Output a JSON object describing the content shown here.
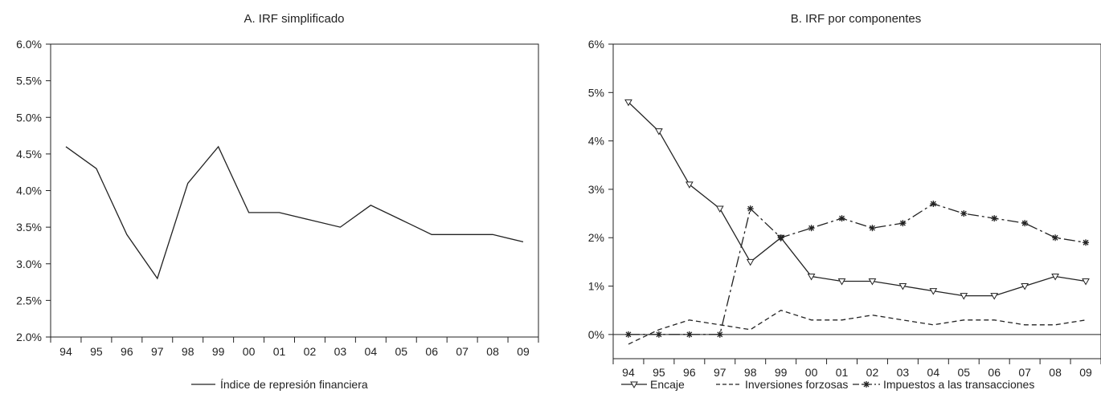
{
  "chart_data": [
    {
      "type": "line",
      "title": "A. IRF simplificado",
      "categories": [
        "94",
        "95",
        "96",
        "97",
        "98",
        "99",
        "00",
        "01",
        "02",
        "03",
        "04",
        "05",
        "06",
        "07",
        "08",
        "09"
      ],
      "ylim": [
        0.02,
        0.06
      ],
      "yticks": [
        "2.0%",
        "2.5%",
        "3.0%",
        "3.5%",
        "4.0%",
        "4.5%",
        "5.0%",
        "5.5%",
        "6.0%"
      ],
      "grid": false,
      "legend": "bottom",
      "series": [
        {
          "name": "Índice de represión financiera",
          "style": "solid",
          "marker": "none",
          "values": [
            0.046,
            0.043,
            0.034,
            0.028,
            0.041,
            0.046,
            0.037,
            0.037,
            0.036,
            0.035,
            0.038,
            0.036,
            0.034,
            0.034,
            0.034,
            0.033
          ]
        }
      ]
    },
    {
      "type": "line",
      "title": "B. IRF por componentes",
      "categories": [
        "94",
        "95",
        "96",
        "97",
        "98",
        "99",
        "00",
        "01",
        "02",
        "03",
        "04",
        "05",
        "06",
        "07",
        "08",
        "09"
      ],
      "ylim": [
        -0.005,
        0.06
      ],
      "yticks": [
        "0%",
        "1%",
        "2%",
        "3%",
        "4%",
        "5%",
        "6%"
      ],
      "zero_line": true,
      "grid": false,
      "legend": "bottom",
      "series": [
        {
          "name": "Encaje",
          "style": "solid",
          "marker": "triangle-down",
          "values": [
            0.048,
            0.042,
            0.031,
            0.026,
            0.015,
            0.02,
            0.012,
            0.011,
            0.011,
            0.01,
            0.009,
            0.008,
            0.008,
            0.01,
            0.012,
            0.011
          ]
        },
        {
          "name": "Inversiones forzosas",
          "style": "dashed",
          "marker": "none",
          "values": [
            -0.002,
            0.001,
            0.003,
            0.002,
            0.001,
            0.005,
            0.003,
            0.003,
            0.004,
            0.003,
            0.002,
            0.003,
            0.003,
            0.002,
            0.002,
            0.003
          ]
        },
        {
          "name": "Impuestos a las transacciones",
          "style": "dashdot",
          "marker": "asterisk",
          "values": [
            0.0,
            0.0,
            0.0,
            0.0,
            0.026,
            0.02,
            0.022,
            0.024,
            0.022,
            0.023,
            0.027,
            0.025,
            0.024,
            0.023,
            0.02,
            0.019
          ]
        }
      ]
    }
  ]
}
